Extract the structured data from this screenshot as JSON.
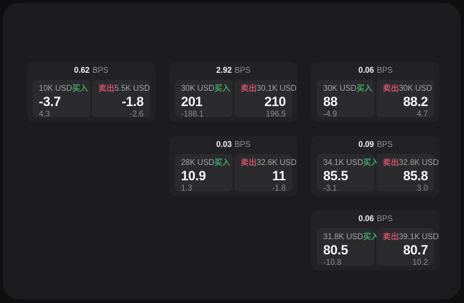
{
  "labels": {
    "bps_unit": "BPS",
    "buy": "买入",
    "sell": "卖出"
  },
  "colors": {
    "buy": "#3fa469",
    "sell": "#c75168",
    "panel_bg": "#1c1c1e",
    "card_bg": "#222224",
    "tile_bg": "#2b2b2d"
  },
  "cards": [
    {
      "bps": "0.62",
      "row": 1,
      "col": 1,
      "buy": {
        "notional": "10K USD",
        "price": "-3.7",
        "delta": "4.3"
      },
      "sell": {
        "notional": "5.5K USD",
        "price": "-1.8",
        "delta": "-2.6"
      }
    },
    {
      "bps": "2.92",
      "row": 1,
      "col": 2,
      "buy": {
        "notional": "30K USD",
        "price": "201",
        "delta": "-188.1"
      },
      "sell": {
        "notional": "30.1K USD",
        "price": "210",
        "delta": "196.5"
      }
    },
    {
      "bps": "0.06",
      "row": 1,
      "col": 3,
      "buy": {
        "notional": "30K USD",
        "price": "88",
        "delta": "-4.9"
      },
      "sell": {
        "notional": "30K USD",
        "price": "88.2",
        "delta": "4.7"
      }
    },
    {
      "bps": "0.03",
      "row": 2,
      "col": 2,
      "buy": {
        "notional": "28K USD",
        "price": "10.9",
        "delta": "1.3"
      },
      "sell": {
        "notional": "32.6K USD",
        "price": "11",
        "delta": "-1.8"
      }
    },
    {
      "bps": "0.09",
      "row": 2,
      "col": 3,
      "buy": {
        "notional": "34.1K USD",
        "price": "85.5",
        "delta": "-3.1"
      },
      "sell": {
        "notional": "32.8K USD",
        "price": "85.8",
        "delta": "3.0"
      }
    },
    {
      "bps": "0.06",
      "row": 3,
      "col": 3,
      "buy": {
        "notional": "31.8K USD",
        "price": "80.5",
        "delta": "-10.8"
      },
      "sell": {
        "notional": "39.1K USD",
        "price": "80.7",
        "delta": "10.2"
      }
    }
  ]
}
